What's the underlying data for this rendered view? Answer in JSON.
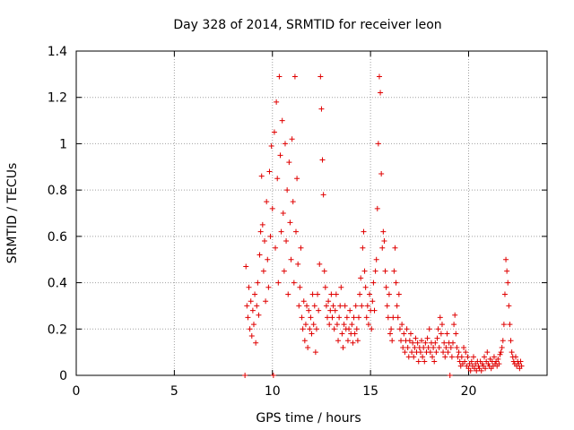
{
  "chart_data": {
    "type": "scatter",
    "title": "Day 328 of 2014, SRMTID for receiver leon",
    "xlabel": "GPS time / hours",
    "ylabel": "SRMTID / TECUs",
    "xlim": [
      0,
      24
    ],
    "ylim": [
      0,
      1.4
    ],
    "xticks": [
      0,
      5,
      10,
      15,
      20
    ],
    "yticks": [
      0,
      0.2,
      0.4,
      0.6,
      0.8,
      1,
      1.2,
      1.4
    ],
    "xtick_labels": [
      "0",
      "5",
      "10",
      "15",
      "20"
    ],
    "ytick_labels": [
      "0",
      "0.2",
      "0.4",
      "0.6",
      "0.8",
      "1",
      "1.2",
      "1.4"
    ],
    "grid": true,
    "marker": "+",
    "series": [
      {
        "name": "SRMTID",
        "color": "#e00000",
        "points": [
          [
            8.6,
            0.0
          ],
          [
            8.65,
            0.47
          ],
          [
            8.7,
            0.3
          ],
          [
            8.75,
            0.25
          ],
          [
            8.8,
            0.38
          ],
          [
            8.85,
            0.2
          ],
          [
            8.9,
            0.32
          ],
          [
            8.95,
            0.17
          ],
          [
            9.0,
            0.28
          ],
          [
            9.05,
            0.22
          ],
          [
            9.1,
            0.35
          ],
          [
            9.15,
            0.14
          ],
          [
            9.2,
            0.3
          ],
          [
            9.25,
            0.4
          ],
          [
            9.3,
            0.26
          ],
          [
            9.35,
            0.52
          ],
          [
            9.4,
            0.62
          ],
          [
            9.45,
            0.86
          ],
          [
            9.5,
            0.65
          ],
          [
            9.55,
            0.45
          ],
          [
            9.6,
            0.58
          ],
          [
            9.65,
            0.32
          ],
          [
            9.7,
            0.75
          ],
          [
            9.75,
            0.5
          ],
          [
            9.8,
            0.38
          ],
          [
            9.85,
            0.88
          ],
          [
            9.9,
            0.6
          ],
          [
            9.95,
            0.99
          ],
          [
            10.0,
            0.72
          ],
          [
            10.05,
            0.0
          ],
          [
            10.1,
            1.05
          ],
          [
            10.15,
            0.55
          ],
          [
            10.2,
            1.18
          ],
          [
            10.25,
            0.85
          ],
          [
            10.3,
            0.4
          ],
          [
            10.35,
            1.29
          ],
          [
            10.4,
            0.95
          ],
          [
            10.45,
            0.62
          ],
          [
            10.5,
            1.1
          ],
          [
            10.55,
            0.7
          ],
          [
            10.6,
            0.45
          ],
          [
            10.65,
            1.0
          ],
          [
            10.7,
            0.58
          ],
          [
            10.75,
            0.8
          ],
          [
            10.8,
            0.35
          ],
          [
            10.85,
            0.92
          ],
          [
            10.9,
            0.66
          ],
          [
            10.95,
            0.5
          ],
          [
            11.0,
            1.02
          ],
          [
            11.05,
            0.75
          ],
          [
            11.1,
            0.4
          ],
          [
            11.15,
            1.29
          ],
          [
            11.2,
            0.62
          ],
          [
            11.25,
            0.85
          ],
          [
            11.3,
            0.48
          ],
          [
            11.35,
            0.3
          ],
          [
            11.4,
            0.38
          ],
          [
            11.45,
            0.55
          ],
          [
            11.5,
            0.25
          ],
          [
            11.55,
            0.2
          ],
          [
            11.6,
            0.32
          ],
          [
            11.65,
            0.15
          ],
          [
            11.7,
            0.22
          ],
          [
            11.75,
            0.3
          ],
          [
            11.8,
            0.12
          ],
          [
            11.85,
            0.28
          ],
          [
            11.9,
            0.2
          ],
          [
            11.95,
            0.25
          ],
          [
            12.0,
            0.18
          ],
          [
            12.05,
            0.35
          ],
          [
            12.1,
            0.22
          ],
          [
            12.15,
            0.3
          ],
          [
            12.2,
            0.1
          ],
          [
            12.25,
            0.2
          ],
          [
            12.3,
            0.35
          ],
          [
            12.35,
            0.28
          ],
          [
            12.4,
            0.48
          ],
          [
            12.45,
            1.29
          ],
          [
            12.5,
            1.15
          ],
          [
            12.55,
            0.93
          ],
          [
            12.6,
            0.78
          ],
          [
            12.65,
            0.45
          ],
          [
            12.7,
            0.38
          ],
          [
            12.75,
            0.3
          ],
          [
            12.8,
            0.25
          ],
          [
            12.85,
            0.32
          ],
          [
            12.9,
            0.22
          ],
          [
            12.95,
            0.28
          ],
          [
            13.0,
            0.35
          ],
          [
            13.05,
            0.25
          ],
          [
            13.1,
            0.3
          ],
          [
            13.15,
            0.2
          ],
          [
            13.2,
            0.28
          ],
          [
            13.25,
            0.35
          ],
          [
            13.3,
            0.22
          ],
          [
            13.35,
            0.15
          ],
          [
            13.4,
            0.25
          ],
          [
            13.45,
            0.3
          ],
          [
            13.5,
            0.38
          ],
          [
            13.55,
            0.18
          ],
          [
            13.6,
            0.12
          ],
          [
            13.65,
            0.22
          ],
          [
            13.7,
            0.3
          ],
          [
            13.75,
            0.2
          ],
          [
            13.8,
            0.25
          ],
          [
            13.85,
            0.15
          ],
          [
            13.9,
            0.2
          ],
          [
            13.95,
            0.28
          ],
          [
            14.0,
            0.18
          ],
          [
            14.05,
            0.22
          ],
          [
            14.1,
            0.14
          ],
          [
            14.15,
            0.25
          ],
          [
            14.2,
            0.18
          ],
          [
            14.25,
            0.3
          ],
          [
            14.3,
            0.2
          ],
          [
            14.35,
            0.15
          ],
          [
            14.4,
            0.25
          ],
          [
            14.45,
            0.35
          ],
          [
            14.5,
            0.42
          ],
          [
            14.55,
            0.3
          ],
          [
            14.6,
            0.55
          ],
          [
            14.65,
            0.62
          ],
          [
            14.7,
            0.45
          ],
          [
            14.75,
            0.38
          ],
          [
            14.8,
            0.25
          ],
          [
            14.85,
            0.3
          ],
          [
            14.9,
            0.22
          ],
          [
            14.95,
            0.35
          ],
          [
            15.0,
            0.28
          ],
          [
            15.05,
            0.2
          ],
          [
            15.1,
            0.32
          ],
          [
            15.15,
            0.4
          ],
          [
            15.2,
            0.28
          ],
          [
            15.25,
            0.45
          ],
          [
            15.3,
            0.5
          ],
          [
            15.35,
            0.72
          ],
          [
            15.4,
            1.0
          ],
          [
            15.45,
            1.29
          ],
          [
            15.5,
            1.22
          ],
          [
            15.55,
            0.87
          ],
          [
            15.6,
            0.55
          ],
          [
            15.65,
            0.62
          ],
          [
            15.7,
            0.58
          ],
          [
            15.75,
            0.45
          ],
          [
            15.8,
            0.38
          ],
          [
            15.85,
            0.3
          ],
          [
            15.9,
            0.25
          ],
          [
            15.95,
            0.35
          ],
          [
            16.0,
            0.18
          ],
          [
            16.05,
            0.2
          ],
          [
            16.1,
            0.15
          ],
          [
            16.15,
            0.25
          ],
          [
            16.2,
            0.45
          ],
          [
            16.25,
            0.55
          ],
          [
            16.3,
            0.4
          ],
          [
            16.35,
            0.3
          ],
          [
            16.4,
            0.25
          ],
          [
            16.45,
            0.35
          ],
          [
            16.5,
            0.2
          ],
          [
            16.55,
            0.15
          ],
          [
            16.6,
            0.22
          ],
          [
            16.65,
            0.12
          ],
          [
            16.7,
            0.18
          ],
          [
            16.75,
            0.1
          ],
          [
            16.8,
            0.15
          ],
          [
            16.85,
            0.2
          ],
          [
            16.9,
            0.12
          ],
          [
            16.95,
            0.08
          ],
          [
            17.0,
            0.15
          ],
          [
            17.05,
            0.18
          ],
          [
            17.1,
            0.1
          ],
          [
            17.15,
            0.14
          ],
          [
            17.2,
            0.08
          ],
          [
            17.25,
            0.12
          ],
          [
            17.3,
            0.16
          ],
          [
            17.35,
            0.1
          ],
          [
            17.4,
            0.14
          ],
          [
            17.45,
            0.06
          ],
          [
            17.5,
            0.12
          ],
          [
            17.55,
            0.1
          ],
          [
            17.6,
            0.15
          ],
          [
            17.65,
            0.08
          ],
          [
            17.7,
            0.12
          ],
          [
            17.75,
            0.06
          ],
          [
            17.8,
            0.14
          ],
          [
            17.85,
            0.1
          ],
          [
            17.9,
            0.16
          ],
          [
            17.95,
            0.12
          ],
          [
            18.0,
            0.2
          ],
          [
            18.05,
            0.1
          ],
          [
            18.1,
            0.14
          ],
          [
            18.15,
            0.08
          ],
          [
            18.2,
            0.12
          ],
          [
            18.25,
            0.06
          ],
          [
            18.3,
            0.14
          ],
          [
            18.35,
            0.1
          ],
          [
            18.4,
            0.16
          ],
          [
            18.45,
            0.2
          ],
          [
            18.5,
            0.12
          ],
          [
            18.55,
            0.25
          ],
          [
            18.6,
            0.18
          ],
          [
            18.65,
            0.22
          ],
          [
            18.7,
            0.1
          ],
          [
            18.75,
            0.14
          ],
          [
            18.8,
            0.08
          ],
          [
            18.85,
            0.12
          ],
          [
            18.9,
            0.18
          ],
          [
            18.95,
            0.1
          ],
          [
            19.0,
            0.14
          ],
          [
            19.05,
            0.0
          ],
          [
            19.1,
            0.12
          ],
          [
            19.15,
            0.08
          ],
          [
            19.2,
            0.14
          ],
          [
            19.25,
            0.22
          ],
          [
            19.3,
            0.26
          ],
          [
            19.35,
            0.18
          ],
          [
            19.4,
            0.12
          ],
          [
            19.45,
            0.08
          ],
          [
            19.5,
            0.1
          ],
          [
            19.55,
            0.06
          ],
          [
            19.6,
            0.04
          ],
          [
            19.65,
            0.08
          ],
          [
            19.7,
            0.05
          ],
          [
            19.75,
            0.12
          ],
          [
            19.8,
            0.06
          ],
          [
            19.85,
            0.1
          ],
          [
            19.9,
            0.04
          ],
          [
            19.95,
            0.08
          ],
          [
            20.0,
            0.03
          ],
          [
            20.05,
            0.05
          ],
          [
            20.1,
            0.02
          ],
          [
            20.15,
            0.06
          ],
          [
            20.2,
            0.04
          ],
          [
            20.25,
            0.08
          ],
          [
            20.3,
            0.03
          ],
          [
            20.35,
            0.05
          ],
          [
            20.4,
            0.02
          ],
          [
            20.45,
            0.06
          ],
          [
            20.5,
            0.04
          ],
          [
            20.55,
            0.03
          ],
          [
            20.6,
            0.06
          ],
          [
            20.65,
            0.02
          ],
          [
            20.7,
            0.05
          ],
          [
            20.75,
            0.04
          ],
          [
            20.8,
            0.08
          ],
          [
            20.85,
            0.03
          ],
          [
            20.9,
            0.06
          ],
          [
            20.95,
            0.1
          ],
          [
            21.0,
            0.05
          ],
          [
            21.05,
            0.04
          ],
          [
            21.1,
            0.07
          ],
          [
            21.15,
            0.03
          ],
          [
            21.2,
            0.06
          ],
          [
            21.25,
            0.04
          ],
          [
            21.3,
            0.08
          ],
          [
            21.35,
            0.05
          ],
          [
            21.4,
            0.06
          ],
          [
            21.45,
            0.04
          ],
          [
            21.5,
            0.07
          ],
          [
            21.55,
            0.05
          ],
          [
            21.6,
            0.09
          ],
          [
            21.65,
            0.1
          ],
          [
            21.7,
            0.12
          ],
          [
            21.75,
            0.15
          ],
          [
            21.8,
            0.22
          ],
          [
            21.85,
            0.35
          ],
          [
            21.9,
            0.5
          ],
          [
            21.95,
            0.45
          ],
          [
            22.0,
            0.4
          ],
          [
            22.05,
            0.3
          ],
          [
            22.1,
            0.22
          ],
          [
            22.15,
            0.15
          ],
          [
            22.2,
            0.1
          ],
          [
            22.25,
            0.08
          ],
          [
            22.3,
            0.06
          ],
          [
            22.35,
            0.05
          ],
          [
            22.4,
            0.08
          ],
          [
            22.45,
            0.04
          ],
          [
            22.5,
            0.06
          ],
          [
            22.55,
            0.05
          ],
          [
            22.6,
            0.03
          ],
          [
            22.65,
            0.06
          ],
          [
            22.7,
            0.04
          ]
        ]
      }
    ]
  }
}
